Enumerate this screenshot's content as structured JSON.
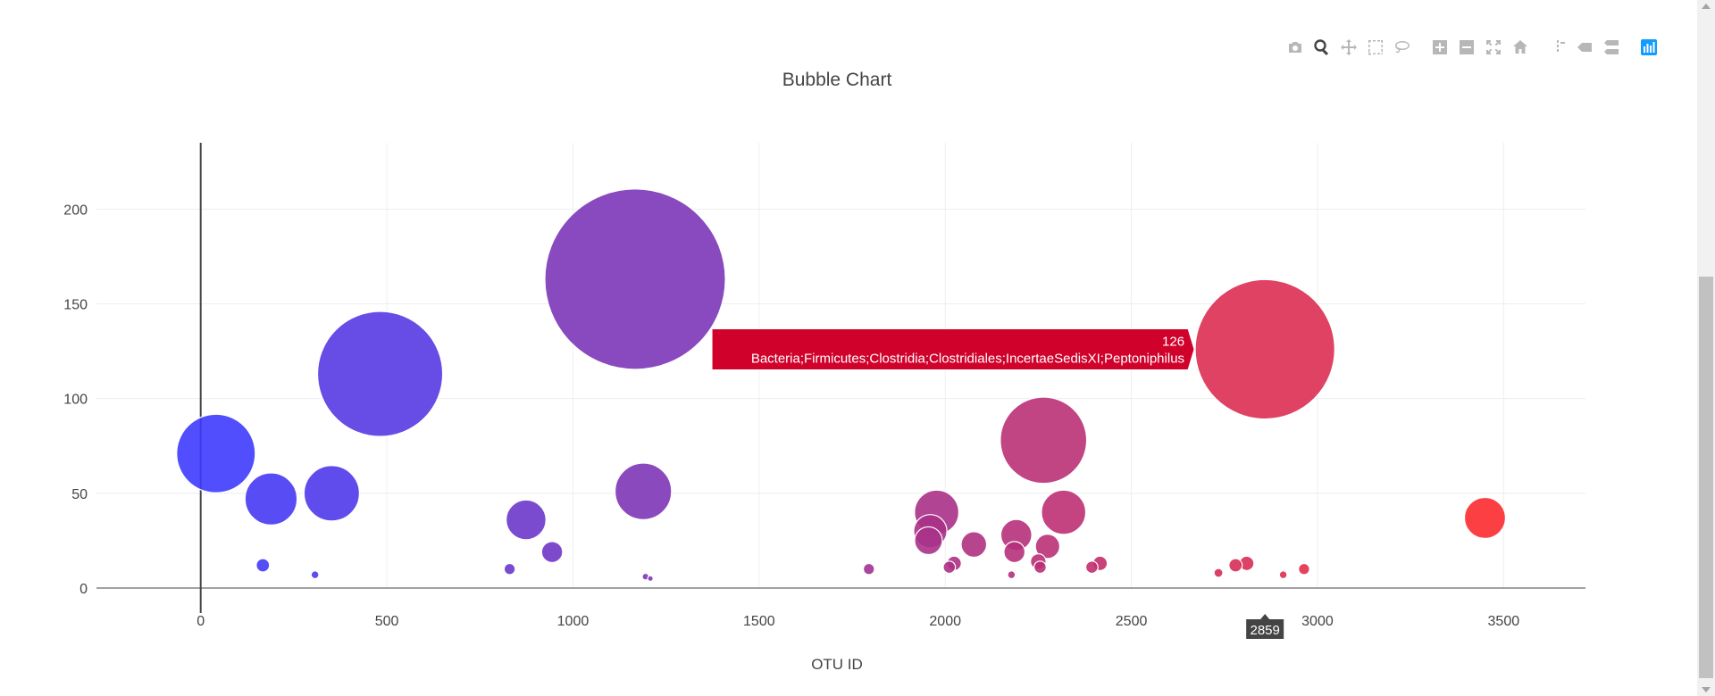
{
  "modebar": {
    "buttons": [
      {
        "name": "camera-icon"
      },
      {
        "name": "zoom-icon",
        "active": true
      },
      {
        "name": "pan-icon"
      },
      {
        "name": "box-select-icon"
      },
      {
        "name": "lasso-select-icon"
      },
      {
        "sep": true
      },
      {
        "name": "zoom-in-icon"
      },
      {
        "name": "zoom-out-icon"
      },
      {
        "name": "autoscale-icon"
      },
      {
        "name": "reset-axes-icon"
      },
      {
        "sep": true
      },
      {
        "name": "spike-lines-icon"
      },
      {
        "name": "hover-closest-icon"
      },
      {
        "name": "hover-compare-icon"
      },
      {
        "sep": true
      },
      {
        "name": "plotly-logo-icon"
      }
    ]
  },
  "chart_data": {
    "type": "scatter",
    "title": "Bubble Chart",
    "xlabel": "OTU ID",
    "ylabel": "",
    "xlim": [
      -280,
      3720
    ],
    "ylim": [
      0,
      235
    ],
    "x_ticks": [
      0,
      500,
      1000,
      1500,
      2000,
      2500,
      3000,
      3500
    ],
    "y_ticks": [
      0,
      50,
      100,
      150,
      200
    ],
    "grid": true,
    "colorscale": [
      "#3b3bff",
      "#ff2a2a"
    ],
    "points": [
      {
        "x": 41,
        "y": 71
      },
      {
        "x": 189,
        "y": 47
      },
      {
        "x": 352,
        "y": 50
      },
      {
        "x": 482,
        "y": 113
      },
      {
        "x": 167,
        "y": 12
      },
      {
        "x": 307,
        "y": 7
      },
      {
        "x": 830,
        "y": 10
      },
      {
        "x": 874,
        "y": 36
      },
      {
        "x": 944,
        "y": 19
      },
      {
        "x": 1167,
        "y": 163
      },
      {
        "x": 1189,
        "y": 51
      },
      {
        "x": 1195,
        "y": 6
      },
      {
        "x": 1208,
        "y": 5
      },
      {
        "x": 1795,
        "y": 10
      },
      {
        "x": 1977,
        "y": 40
      },
      {
        "x": 1960,
        "y": 30
      },
      {
        "x": 1955,
        "y": 25
      },
      {
        "x": 2011,
        "y": 11
      },
      {
        "x": 2024,
        "y": 13
      },
      {
        "x": 2077,
        "y": 23
      },
      {
        "x": 2191,
        "y": 28
      },
      {
        "x": 2186,
        "y": 19
      },
      {
        "x": 2264,
        "y": 78
      },
      {
        "x": 2318,
        "y": 40
      },
      {
        "x": 2275,
        "y": 22
      },
      {
        "x": 2250,
        "y": 14
      },
      {
        "x": 2255,
        "y": 11
      },
      {
        "x": 2178,
        "y": 7
      },
      {
        "x": 2394,
        "y": 11
      },
      {
        "x": 2416,
        "y": 13
      },
      {
        "x": 2859,
        "y": 126
      },
      {
        "x": 2734,
        "y": 8
      },
      {
        "x": 2780,
        "y": 12
      },
      {
        "x": 2810,
        "y": 13
      },
      {
        "x": 2908,
        "y": 7
      },
      {
        "x": 2964,
        "y": 10
      },
      {
        "x": 3450,
        "y": 37
      }
    ],
    "hover": {
      "x": 2859,
      "y": 126,
      "value_label": "126",
      "text": "Bacteria;Firmicutes;Clostridia;Clostridiales;IncertaeSedisXI;Peptoniphilus",
      "x_label": "2859",
      "color": "#d0022b"
    }
  }
}
